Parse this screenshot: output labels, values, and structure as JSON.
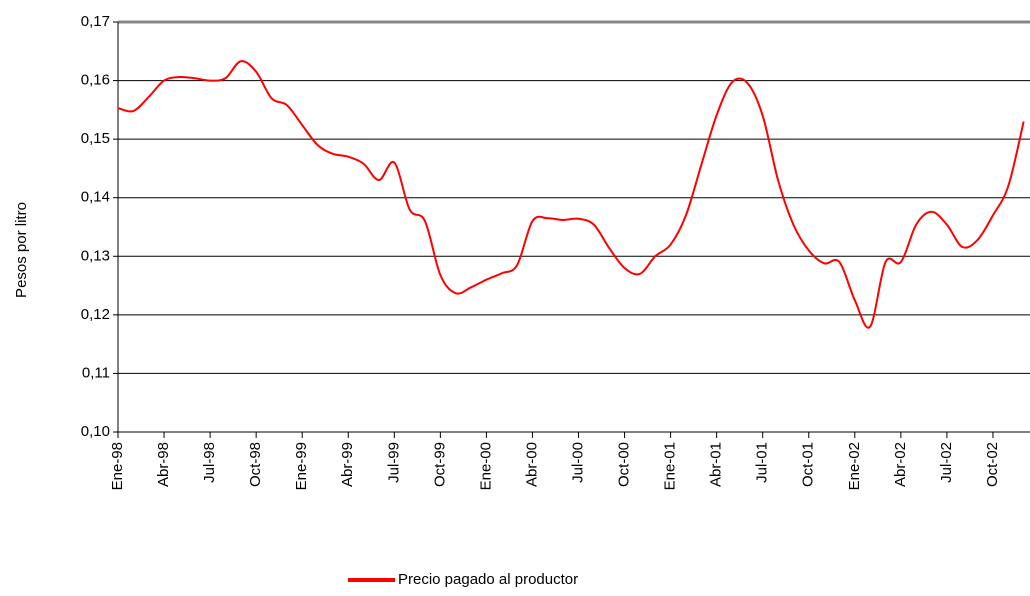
{
  "chart_data": {
    "type": "line",
    "y_label": "Pesos por litro",
    "categories": [
      "Ene-98",
      null,
      null,
      "Abr-98",
      null,
      null,
      "Jul-98",
      null,
      null,
      "Oct-98",
      null,
      null,
      "Ene-99",
      null,
      null,
      "Abr-99",
      null,
      null,
      "Jul-99",
      null,
      null,
      "Oct-99",
      null,
      null,
      "Ene-00",
      null,
      null,
      "Abr-00",
      null,
      null,
      "Jul-00",
      null,
      null,
      "Oct-00",
      null,
      null,
      "Ene-01",
      null,
      null,
      "Abr-01",
      null,
      null,
      "Jul-01",
      null,
      null,
      "Oct-01",
      null,
      null,
      "Ene-02",
      null,
      null,
      "Abr-02",
      null,
      null,
      "Jul-02",
      null,
      null,
      "Oct-02",
      null,
      null
    ],
    "series": [
      {
        "name": "Precio pagado al productor",
        "color": "#ff0000",
        "values": [
          0.1553,
          0.1548,
          0.1572,
          0.16,
          0.1606,
          0.1604,
          0.16,
          0.1604,
          0.1633,
          0.1615,
          0.157,
          0.1558,
          0.1524,
          0.149,
          0.1475,
          0.147,
          0.1458,
          0.143,
          0.146,
          0.138,
          0.136,
          0.1268,
          0.1237,
          0.1247,
          0.126,
          0.1271,
          0.1285,
          0.136,
          0.1365,
          0.1362,
          0.1364,
          0.1354,
          0.1314,
          0.128,
          0.127,
          0.13,
          0.132,
          0.137,
          0.1456,
          0.1541,
          0.1597,
          0.1596,
          0.154,
          0.143,
          0.1354,
          0.131,
          0.1288,
          0.129,
          0.1225,
          0.118,
          0.129,
          0.129,
          0.1354,
          0.1376,
          0.1354,
          0.1316,
          0.1328,
          0.137,
          0.142,
          0.153
        ]
      }
    ],
    "ylim": [
      0.1,
      0.17
    ],
    "yticks": [
      {
        "value": 0.1,
        "label": "0,10"
      },
      {
        "value": 0.11,
        "label": "0,11"
      },
      {
        "value": 0.12,
        "label": "0,12"
      },
      {
        "value": 0.13,
        "label": "0,13"
      },
      {
        "value": 0.14,
        "label": "0,14"
      },
      {
        "value": 0.15,
        "label": "0,15"
      },
      {
        "value": 0.16,
        "label": "0,16"
      },
      {
        "value": 0.17,
        "label": "0,17"
      }
    ],
    "grid": true,
    "legend": "bottom"
  }
}
